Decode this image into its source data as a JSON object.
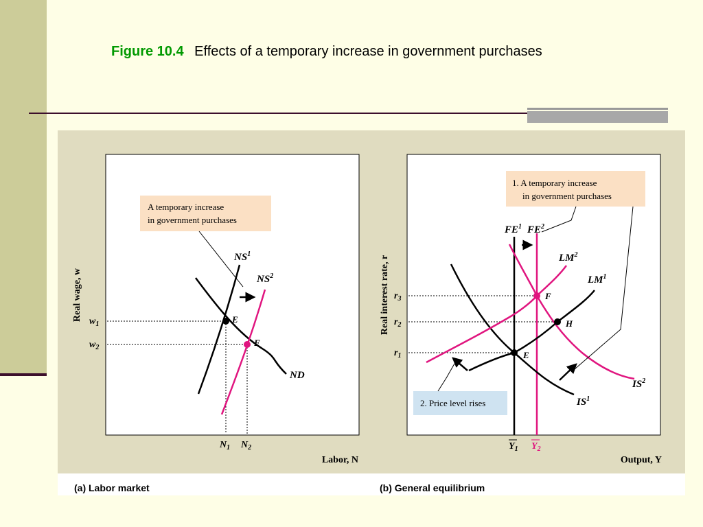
{
  "slide": {
    "figure_label": "Figure 10.4",
    "figure_title": "Effects of a temporary increase in government purchases"
  },
  "panel_a": {
    "caption": "(a) Labor market",
    "y_axis": "Real wage, w",
    "x_axis": "Labor, N",
    "note_line1": "A temporary increase",
    "note_line2": "in government purchases",
    "curves": {
      "ns1": "NS",
      "ns1_sup": "1",
      "ns2": "NS",
      "ns2_sup": "2",
      "nd": "ND"
    },
    "points": {
      "e": "E",
      "f": "F"
    },
    "ticks": {
      "w1": "w",
      "w1_sub": "1",
      "w2": "w",
      "w2_sub": "2",
      "n1": "N",
      "n1_sub": "1",
      "n2": "N",
      "n2_sub": "2"
    }
  },
  "panel_b": {
    "caption": "(b) General equilibrium",
    "y_axis": "Real interest rate, r",
    "x_axis": "Output, Y",
    "note1_line1": "1. A temporary increase",
    "note1_line2": "in government purchases",
    "note2": "2. Price level rises",
    "curves": {
      "fe1": "FE",
      "fe1_sup": "1",
      "fe2": "FE",
      "fe2_sup": "2",
      "lm1": "LM",
      "lm1_sup": "1",
      "lm2": "LM",
      "lm2_sup": "2",
      "is1": "IS",
      "is1_sup": "1",
      "is2": "IS",
      "is2_sup": "2"
    },
    "points": {
      "e": "E",
      "f": "F",
      "h": "H"
    },
    "ticks": {
      "r1": "r",
      "r1_sub": "1",
      "r2": "r",
      "r2_sub": "2",
      "r3": "r",
      "r3_sub": "3",
      "y1": "Y",
      "y1_sub": "1",
      "y2": "Y",
      "y2_sub": "2"
    }
  },
  "colors": {
    "new_curve": "#e0157f",
    "panel_bg": "#e0dcc0",
    "plot_bg": "#ffffff",
    "note_bg": "#fbe0c4",
    "note2_bg": "#cfe3f1"
  }
}
